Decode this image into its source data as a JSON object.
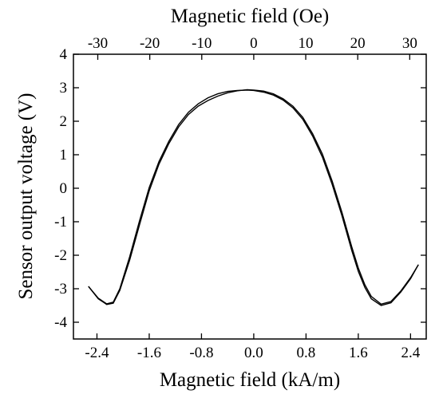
{
  "chart_data": {
    "type": "line",
    "title": "",
    "xlabel": "Magnetic field (kA/m)",
    "ylabel": "Sensor output voltage (V)",
    "x2label": "Magnetic field (Oe)",
    "xlim": [
      -2.76,
      2.64
    ],
    "ylim": [
      -4.5,
      4.0
    ],
    "x_ticks": [
      -2.4,
      -1.6,
      -0.8,
      0.0,
      0.8,
      1.6,
      2.4
    ],
    "x_tick_labels": [
      "-2.4",
      "-1.6",
      "-0.8",
      "0.0",
      "0.8",
      "1.6",
      "2.4"
    ],
    "x2_ticks": [
      -30,
      -20,
      -10,
      0,
      10,
      20,
      30
    ],
    "x2_tick_labels": [
      "-30",
      "-20",
      "-10",
      "0",
      "10",
      "20",
      "30"
    ],
    "y_ticks": [
      -4,
      -3,
      -2,
      -1,
      0,
      1,
      2,
      3,
      4
    ],
    "y_tick_labels": [
      "-4",
      "-3",
      "-2",
      "-1",
      "0",
      "1",
      "2",
      "3",
      "4"
    ],
    "grid": false,
    "legend": "none",
    "series": [
      {
        "x": [
          -2.53,
          -2.38,
          -2.25,
          -2.15,
          -2.05,
          -1.9,
          -1.75,
          -1.6,
          -1.45,
          -1.3,
          -1.15,
          -1.0,
          -0.85,
          -0.7,
          -0.55,
          -0.4,
          -0.25,
          -0.1,
          0.0,
          0.15,
          0.3,
          0.45,
          0.6,
          0.75,
          0.9,
          1.05,
          1.2,
          1.35,
          1.5,
          1.6,
          1.7,
          1.8,
          1.95,
          2.1,
          2.25,
          2.4,
          2.52
        ],
        "y": [
          -2.93,
          -3.3,
          -3.47,
          -3.43,
          -3.05,
          -2.15,
          -1.1,
          -0.08,
          0.72,
          1.33,
          1.83,
          2.2,
          2.45,
          2.62,
          2.75,
          2.85,
          2.91,
          2.94,
          2.93,
          2.9,
          2.82,
          2.67,
          2.45,
          2.12,
          1.63,
          1.02,
          0.22,
          -0.72,
          -1.75,
          -2.38,
          -2.88,
          -3.23,
          -3.46,
          -3.38,
          -3.07,
          -2.67,
          -2.28
        ]
      },
      {
        "x": [
          -2.53,
          -2.38,
          -2.25,
          -2.15,
          -2.05,
          -1.9,
          -1.75,
          -1.6,
          -1.45,
          -1.3,
          -1.15,
          -1.0,
          -0.85,
          -0.7,
          -0.55,
          -0.4,
          -0.25,
          -0.1,
          0.0,
          0.15,
          0.3,
          0.45,
          0.6,
          0.75,
          0.9,
          1.05,
          1.2,
          1.35,
          1.5,
          1.6,
          1.7,
          1.8,
          1.95,
          2.1,
          2.25,
          2.4,
          2.52
        ],
        "y": [
          -2.93,
          -3.28,
          -3.45,
          -3.4,
          -3.0,
          -2.05,
          -0.98,
          0.02,
          0.8,
          1.4,
          1.9,
          2.27,
          2.52,
          2.7,
          2.82,
          2.89,
          2.92,
          2.93,
          2.92,
          2.87,
          2.78,
          2.63,
          2.4,
          2.06,
          1.56,
          0.93,
          0.12,
          -0.82,
          -1.86,
          -2.48,
          -2.96,
          -3.3,
          -3.5,
          -3.42,
          -3.1,
          -2.7,
          -2.28
        ]
      }
    ]
  }
}
